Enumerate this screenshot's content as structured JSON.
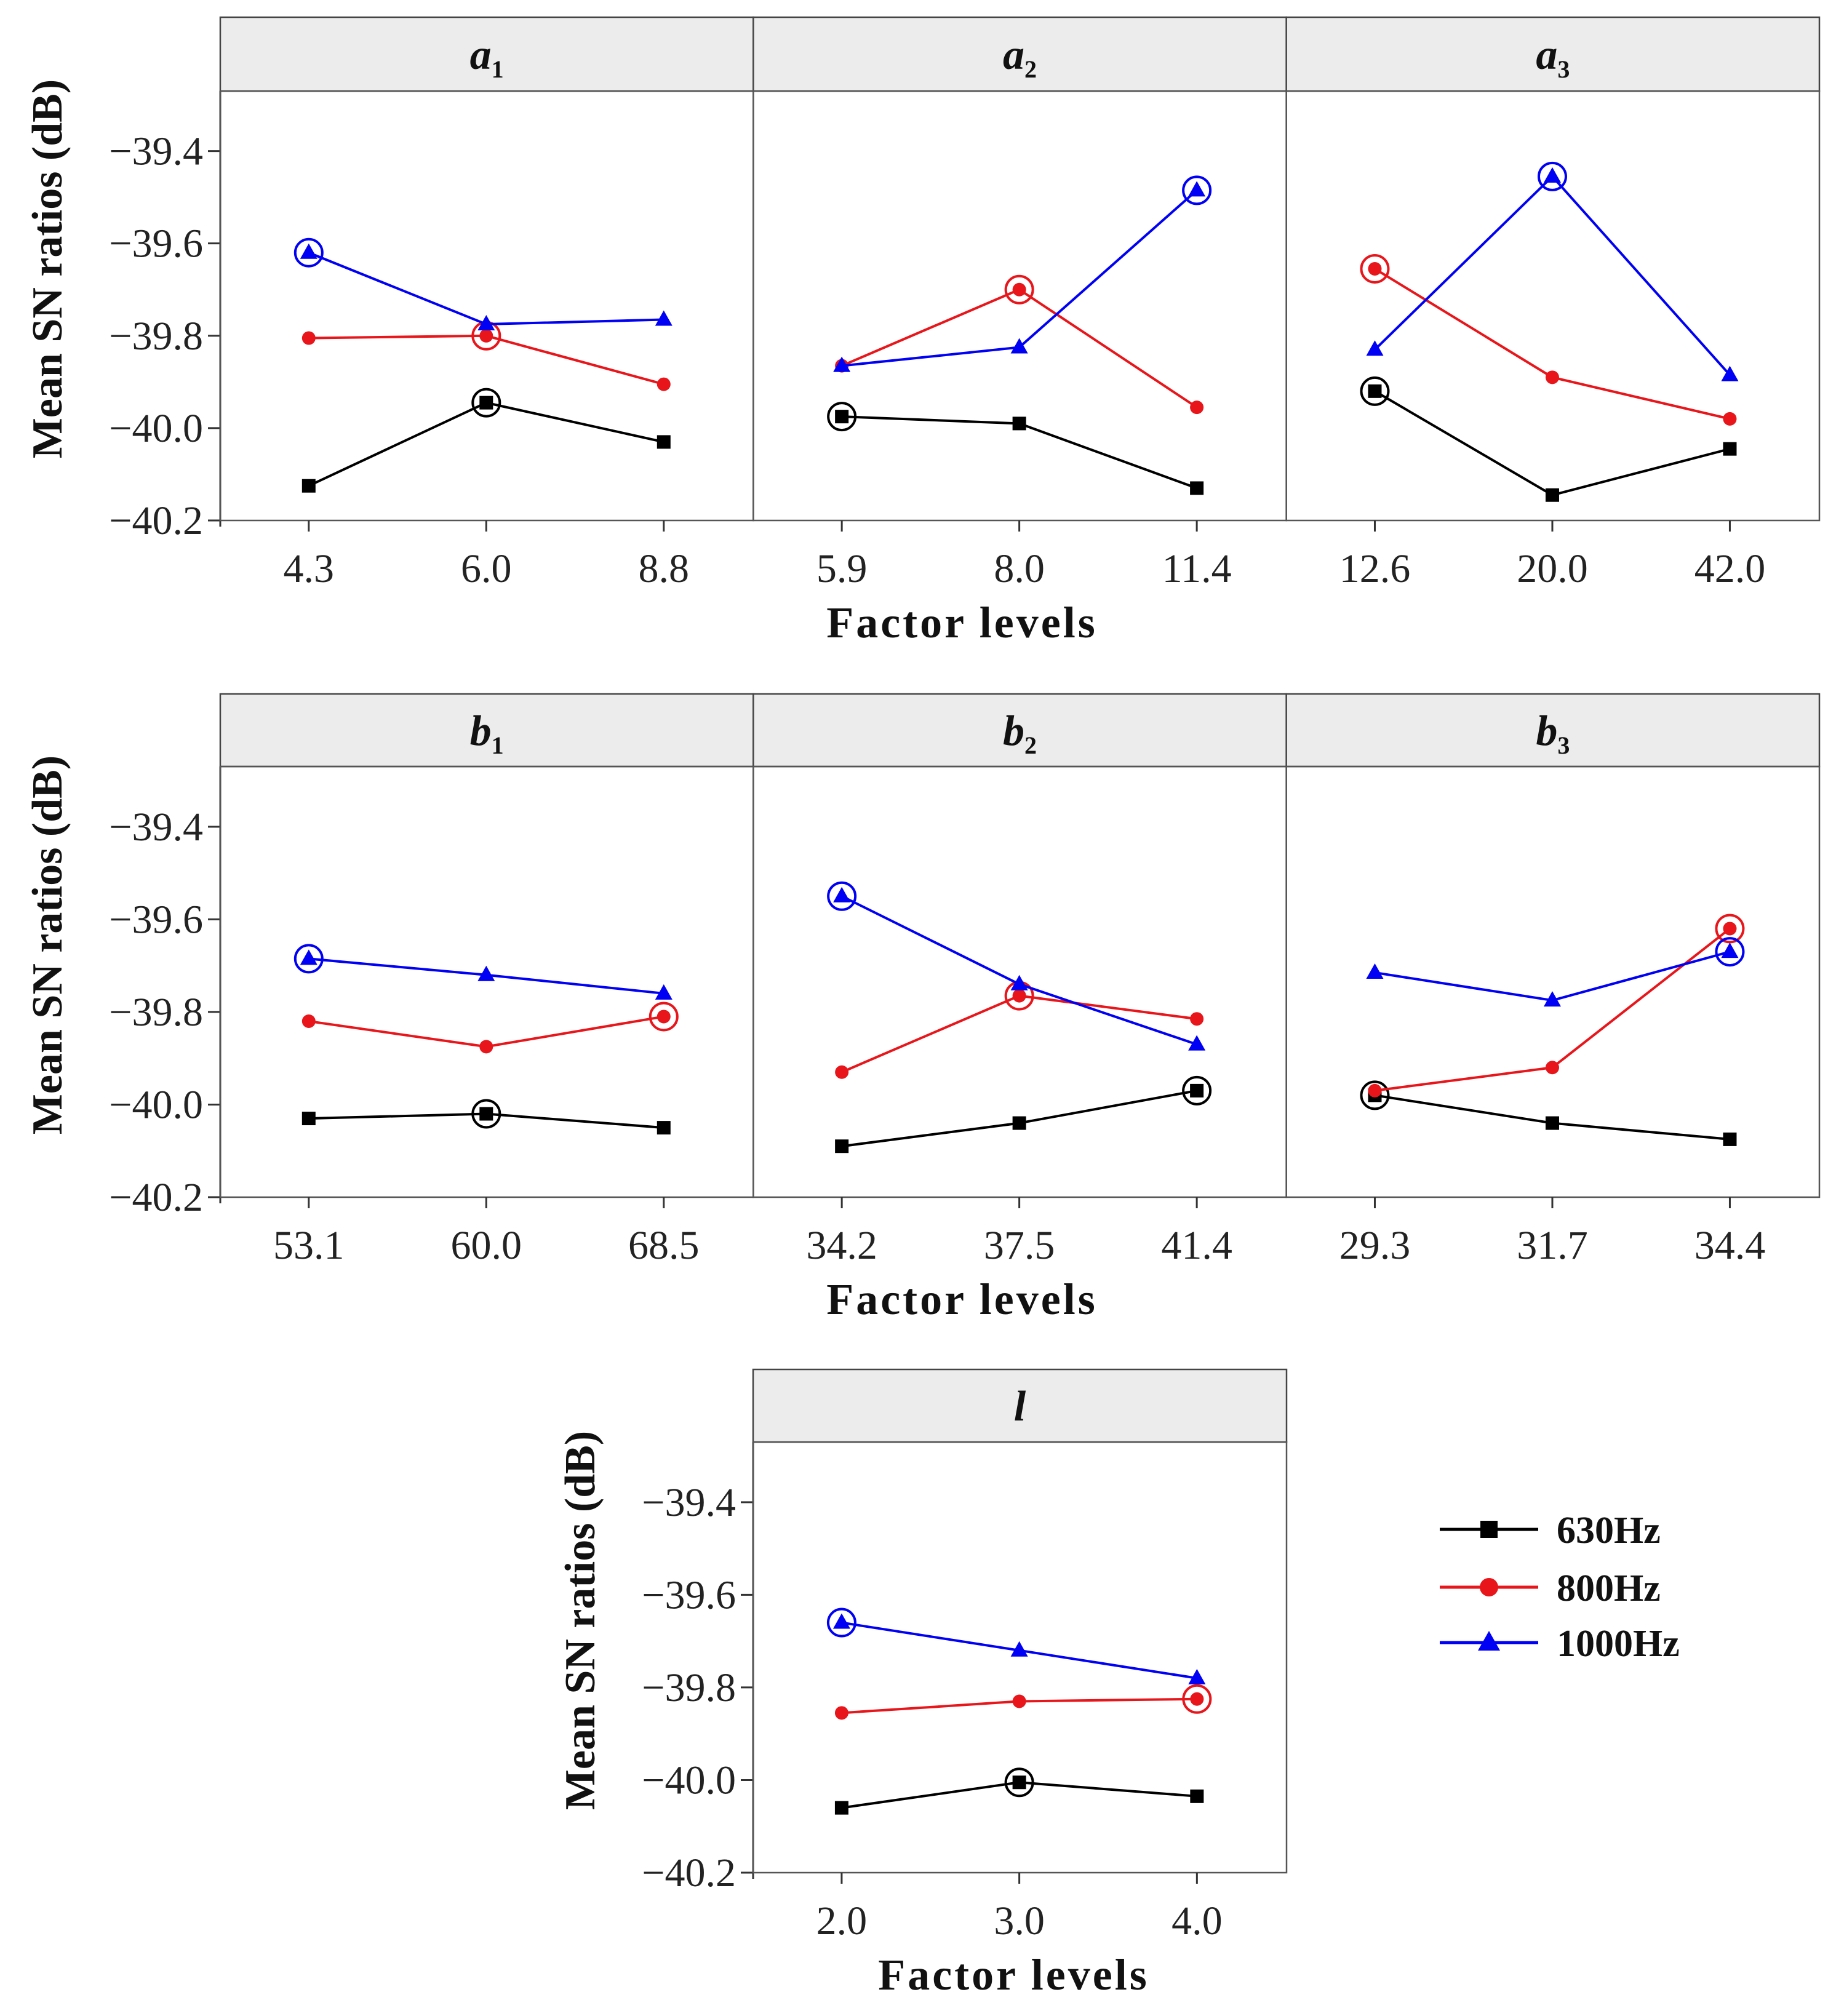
{
  "chart_data": {
    "type": "line",
    "ylabel": "Mean SN ratios (dB)",
    "xlabel": "Factor levels",
    "ylim": [
      -40.2,
      -39.27
    ],
    "yticks": [
      -39.4,
      -39.6,
      -39.8,
      -40.0,
      -40.2
    ],
    "ytick_labels": [
      "−39.4",
      "−39.6",
      "−39.8",
      "−40.0",
      "−40.2"
    ],
    "series_names": [
      "630Hz",
      "800Hz",
      "1000Hz"
    ],
    "series_colors": [
      "#000000",
      "#e8161b",
      "#0000f5"
    ],
    "series_markers": [
      "square",
      "circle",
      "triangle"
    ],
    "legend_position": "right of bottom panel",
    "panels": [
      {
        "name": "a",
        "sub": "1",
        "categories": [
          "4.3",
          "6.0",
          "8.8"
        ],
        "series": [
          {
            "name": "630Hz",
            "values": [
              -40.125,
              -39.945,
              -40.03
            ],
            "optimal": 1
          },
          {
            "name": "800Hz",
            "values": [
              -39.805,
              -39.8,
              -39.905
            ],
            "optimal": 1
          },
          {
            "name": "1000Hz",
            "values": [
              -39.62,
              -39.775,
              -39.765
            ],
            "optimal": 0
          }
        ]
      },
      {
        "name": "a",
        "sub": "2",
        "categories": [
          "5.9",
          "8.0",
          "11.4"
        ],
        "series": [
          {
            "name": "630Hz",
            "values": [
              -39.975,
              -39.99,
              -40.13
            ],
            "optimal": 0
          },
          {
            "name": "800Hz",
            "values": [
              -39.865,
              -39.7,
              -39.955
            ],
            "optimal": 1
          },
          {
            "name": "1000Hz",
            "values": [
              -39.865,
              -39.825,
              -39.485
            ],
            "optimal": 2
          }
        ]
      },
      {
        "name": "a",
        "sub": "3",
        "categories": [
          "12.6",
          "20.0",
          "42.0"
        ],
        "series": [
          {
            "name": "630Hz",
            "values": [
              -39.92,
              -40.145,
              -40.045
            ],
            "optimal": 0
          },
          {
            "name": "800Hz",
            "values": [
              -39.655,
              -39.89,
              -39.98
            ],
            "optimal": 0
          },
          {
            "name": "1000Hz",
            "values": [
              -39.83,
              -39.455,
              -39.885
            ],
            "optimal": 1
          }
        ]
      },
      {
        "name": "b",
        "sub": "1",
        "categories": [
          "53.1",
          "60.0",
          "68.5"
        ],
        "series": [
          {
            "name": "630Hz",
            "values": [
              -40.03,
              -40.02,
              -40.05
            ],
            "optimal": 1
          },
          {
            "name": "800Hz",
            "values": [
              -39.82,
              -39.875,
              -39.81
            ],
            "optimal": 2
          },
          {
            "name": "1000Hz",
            "values": [
              -39.685,
              -39.72,
              -39.76
            ],
            "optimal": 0
          }
        ]
      },
      {
        "name": "b",
        "sub": "2",
        "categories": [
          "34.2",
          "37.5",
          "41.4"
        ],
        "series": [
          {
            "name": "630Hz",
            "values": [
              -40.09,
              -40.04,
              -39.97
            ],
            "optimal": 2
          },
          {
            "name": "800Hz",
            "values": [
              -39.93,
              -39.765,
              -39.815
            ],
            "optimal": 1
          },
          {
            "name": "1000Hz",
            "values": [
              -39.55,
              -39.74,
              -39.87
            ],
            "optimal": 0
          }
        ]
      },
      {
        "name": "b",
        "sub": "3",
        "categories": [
          "29.3",
          "31.7",
          "34.4"
        ],
        "series": [
          {
            "name": "630Hz",
            "values": [
              -39.98,
              -40.04,
              -40.075
            ],
            "optimal": 0
          },
          {
            "name": "800Hz",
            "values": [
              -39.97,
              -39.92,
              -39.62
            ],
            "optimal": 2
          },
          {
            "name": "1000Hz",
            "values": [
              -39.715,
              -39.775,
              -39.67
            ],
            "optimal": 2
          }
        ]
      },
      {
        "name": "l",
        "sub": "",
        "categories": [
          "2.0",
          "3.0",
          "4.0"
        ],
        "series": [
          {
            "name": "630Hz",
            "values": [
              -40.06,
              -40.005,
              -40.035
            ],
            "optimal": 1
          },
          {
            "name": "800Hz",
            "values": [
              -39.855,
              -39.83,
              -39.825
            ],
            "optimal": 2
          },
          {
            "name": "1000Hz",
            "values": [
              -39.66,
              -39.72,
              -39.78
            ],
            "optimal": 0
          }
        ]
      }
    ]
  }
}
